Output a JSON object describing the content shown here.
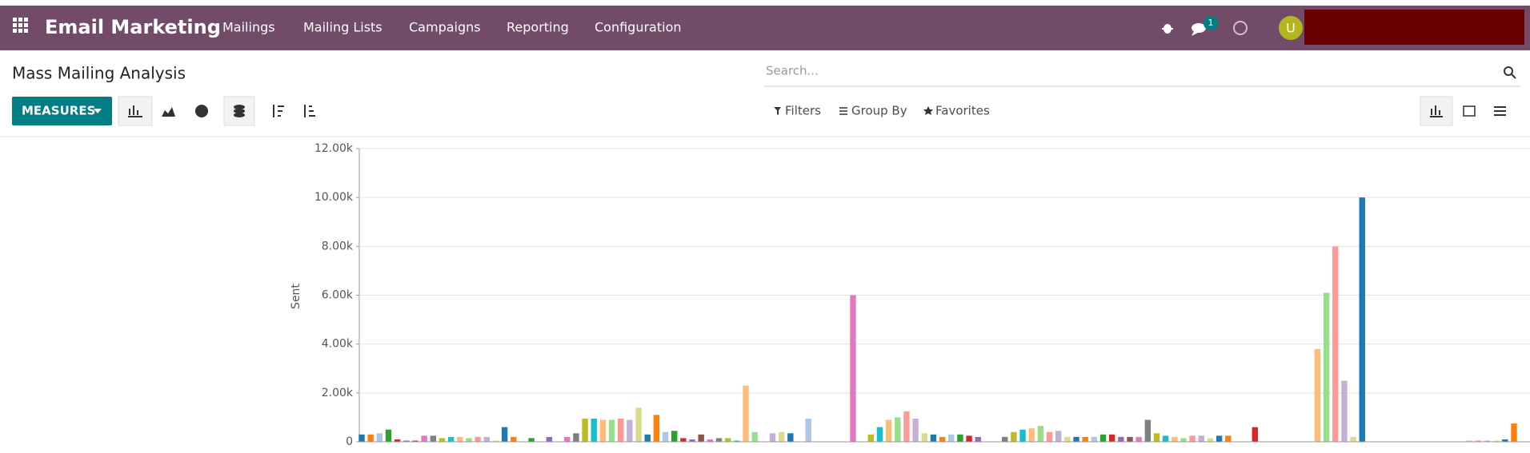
{
  "navbar": {
    "app_name": "Email Marketing",
    "menu": [
      "Mailings",
      "Mailing Lists",
      "Campaigns",
      "Reporting",
      "Configuration"
    ],
    "message_count": "1",
    "avatar": "U"
  },
  "control_panel": {
    "title": "Mass Mailing Analysis",
    "search_placeholder": "Search...",
    "measures": "MEASURES",
    "filters": "Filters",
    "group_by": "Group By",
    "favorites": "Favorites"
  },
  "chart_data": {
    "type": "bar",
    "y_label": "Sent",
    "categories": [
      null,
      null,
      null,
      null,
      null,
      null,
      null,
      null,
      null,
      null,
      null,
      null,
      null,
      null,
      null,
      null,
      null,
      null,
      null,
      null,
      null,
      null,
      null,
      null,
      null,
      null,
      null,
      null,
      null,
      null,
      null,
      null,
      null,
      null,
      null,
      null,
      null,
      null,
      null,
      null,
      null,
      null,
      null,
      null,
      null,
      null,
      null,
      null,
      null,
      null,
      null,
      null,
      null,
      null,
      null,
      null,
      null,
      null,
      null,
      null,
      null,
      null,
      null,
      null,
      null,
      null,
      null,
      null,
      null,
      null,
      null,
      null,
      null,
      null,
      null,
      null,
      null,
      null,
      null,
      null,
      null,
      null,
      null,
      null,
      null,
      null,
      null,
      null,
      null,
      null,
      null,
      null,
      null,
      null,
      null,
      null,
      null,
      null,
      null,
      null,
      null,
      null,
      null,
      null,
      null,
      null,
      null,
      null,
      null,
      null,
      null,
      null,
      null,
      null,
      null,
      null,
      null,
      null,
      null,
      null,
      null,
      null,
      null,
      null,
      null,
      null,
      null,
      null,
      null,
      null
    ],
    "values": [
      300,
      300,
      350,
      500,
      100,
      50,
      50,
      250,
      250,
      150,
      200,
      200,
      150,
      200,
      200,
      50,
      600,
      200,
      null,
      150,
      null,
      200,
      null,
      200,
      350,
      950,
      950,
      900,
      900,
      950,
      900,
      1400,
      300,
      1100,
      400,
      450,
      150,
      100,
      300,
      100,
      150,
      150,
      50,
      2300,
      400,
      null,
      350,
      400,
      350,
      null,
      950,
      null,
      null,
      null,
      null,
      6000,
      null,
      300,
      600,
      900,
      1000,
      1250,
      950,
      350,
      300,
      200,
      300,
      300,
      250,
      200,
      null,
      null,
      200,
      400,
      500,
      550,
      650,
      400,
      450,
      200,
      200,
      200,
      200,
      300,
      300,
      200,
      200,
      200,
      900,
      350,
      250,
      200,
      150,
      250,
      250,
      150,
      250,
      250,
      null,
      null,
      600,
      null,
      null,
      null,
      null,
      null,
      null,
      3800,
      6100,
      8000,
      2500,
      200,
      10000,
      null,
      null,
      null,
      null,
      null,
      null,
      null,
      null,
      null,
      null,
      null,
      50,
      50,
      50,
      50,
      100,
      750
    ],
    "colors": [
      "#1f77b4",
      "#ff7f0e",
      "#aec7e8",
      "#2ca02c",
      "#d62728",
      "#9467bd",
      "#8c564b",
      "#e377c2",
      "#7f7f7f",
      "#bcbd22",
      "#17becf",
      "#ffbb78",
      "#98df8a",
      "#ff9896",
      "#c5b0d5",
      "#dbdb8d"
    ],
    "ylim": [
      0,
      12000
    ],
    "yticks": [
      0,
      {
        "value": 2000,
        "label": "2.00k"
      },
      {
        "value": 4000,
        "label": "4.00k"
      },
      {
        "value": 6000,
        "label": "6.00k"
      },
      {
        "value": 8000,
        "label": "8.00k"
      },
      {
        "value": 10000,
        "label": "10.00k"
      },
      {
        "value": 12000,
        "label": "12.00k"
      }
    ],
    "grid": true
  }
}
